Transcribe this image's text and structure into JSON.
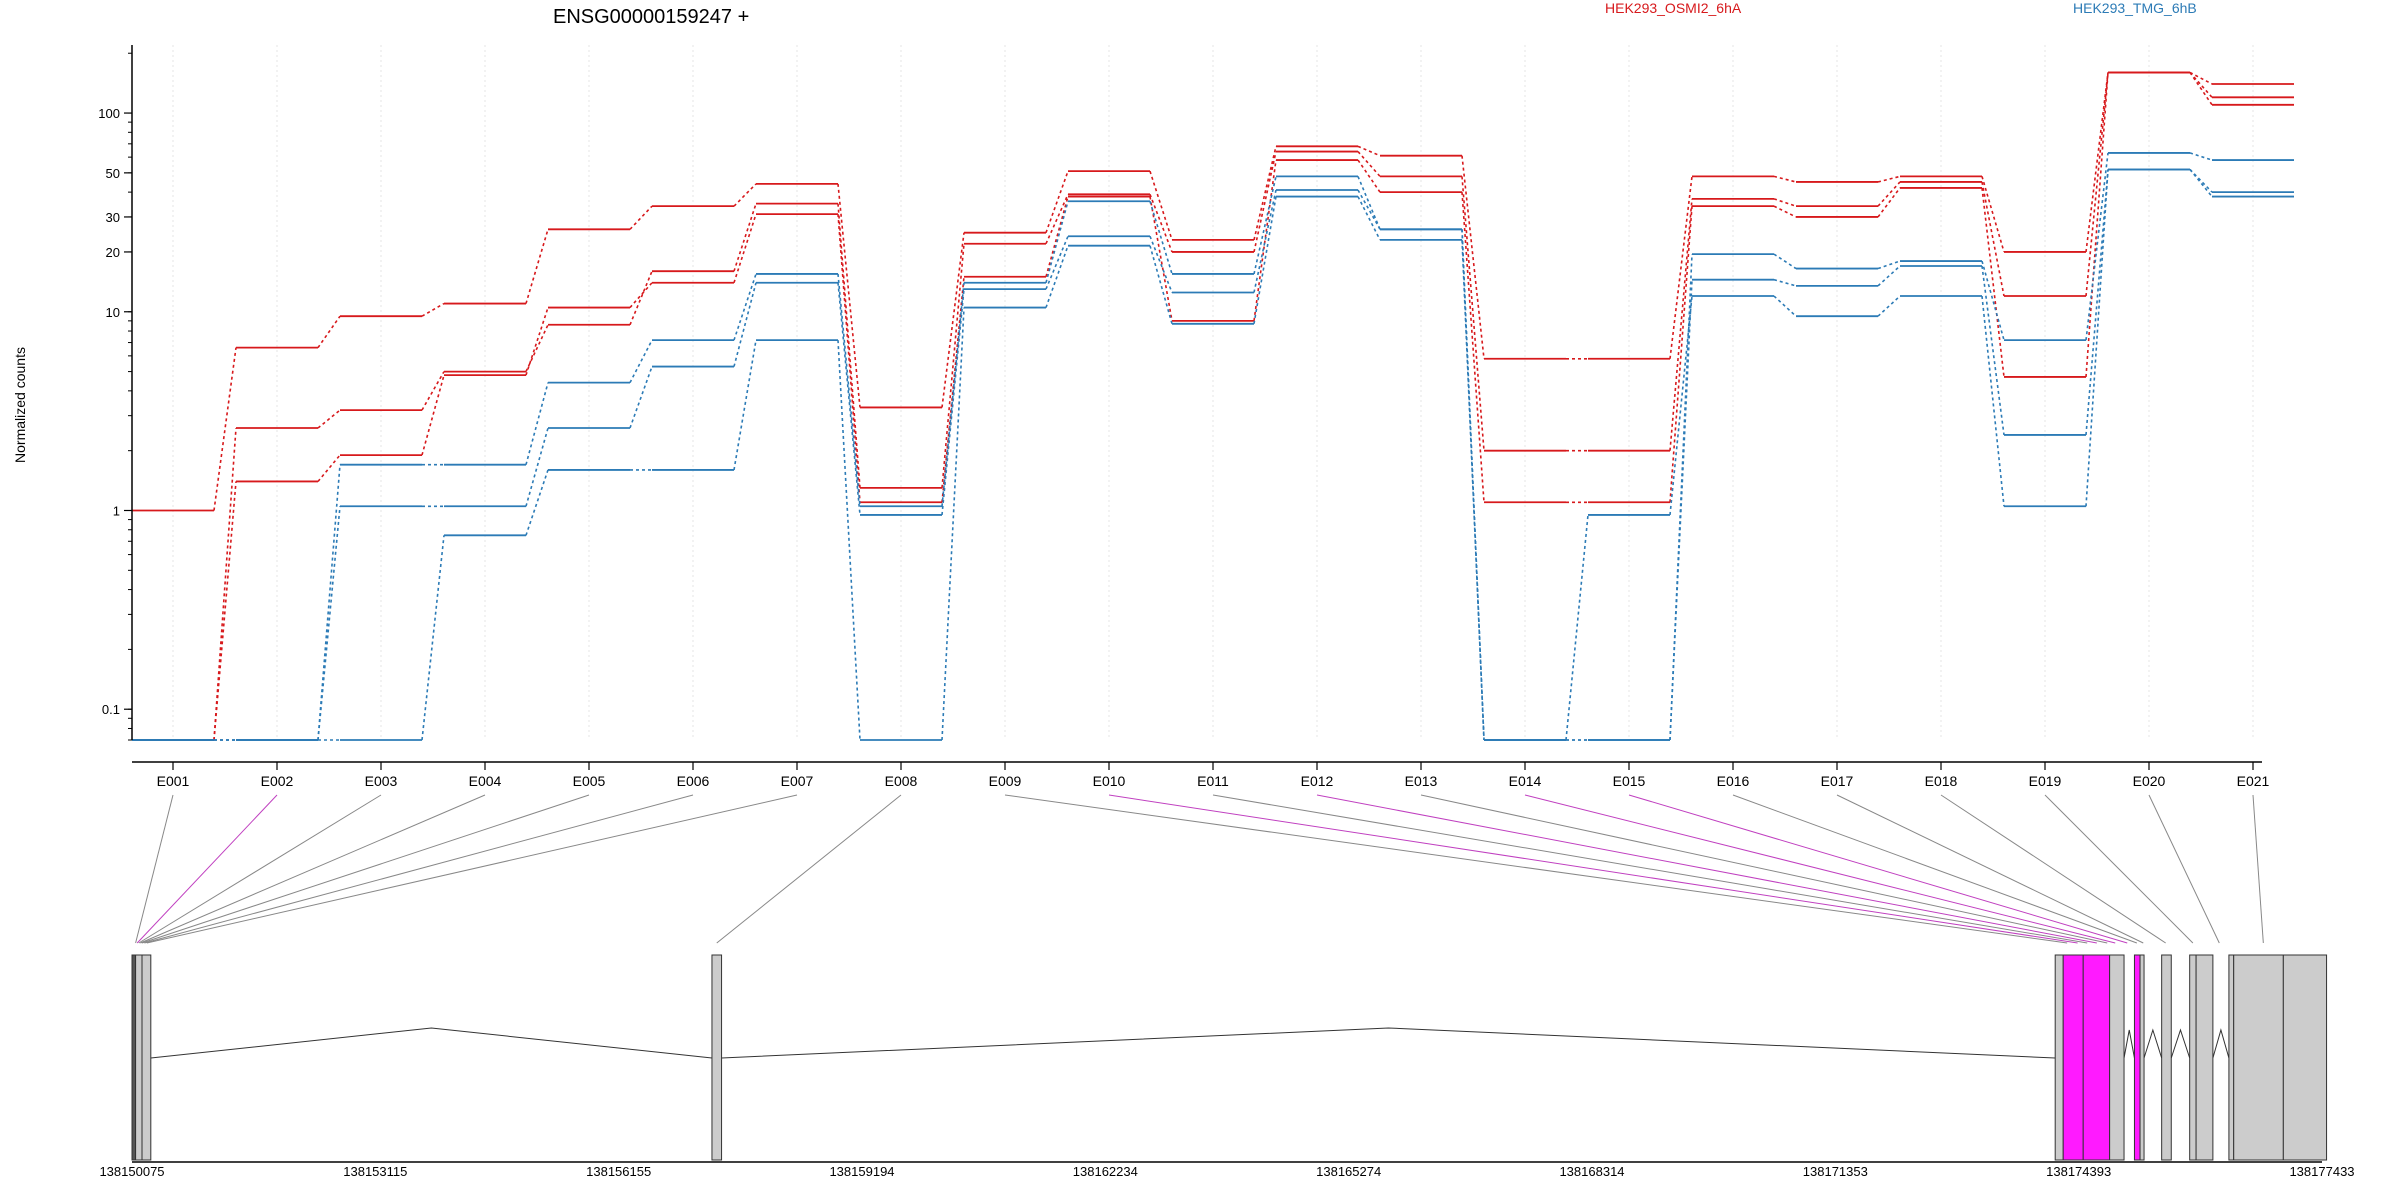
{
  "chart_data": {
    "type": "line",
    "title": "ENSG00000159247 +",
    "ylabel": "Normalized counts",
    "xlabel": "",
    "yscale": "log",
    "ylim": [
      0.07,
      220
    ],
    "yticks": [
      0.1,
      1,
      10,
      20,
      30,
      50,
      100
    ],
    "grid": "vertical",
    "legend_placement": "top",
    "categories": [
      "E001",
      "E002",
      "E003",
      "E004",
      "E005",
      "E006",
      "E007",
      "E008",
      "E009",
      "E010",
      "E011",
      "E012",
      "E013",
      "E014",
      "E015",
      "E016",
      "E017",
      "E018",
      "E019",
      "E020",
      "E021"
    ],
    "series": [
      {
        "name": "HEK293_OSMI2_6hA",
        "color": "#d7191c",
        "values": [
          1.0,
          6.6,
          9.5,
          11,
          26,
          34,
          44,
          3.3,
          25,
          51,
          23,
          68,
          61,
          5.8,
          5.8,
          48,
          45,
          48,
          20,
          160,
          140
        ]
      },
      {
        "name": "HEK293_OSMI2_6hA",
        "color": "#d7191c",
        "values": [
          0.07,
          2.6,
          3.2,
          5.0,
          8.6,
          16,
          35,
          1.3,
          22,
          39,
          20,
          64,
          48,
          2.0,
          2.0,
          37,
          34,
          45,
          12,
          160,
          120
        ]
      },
      {
        "name": "HEK293_OSMI2_6hA",
        "color": "#d7191c",
        "values": [
          0.07,
          1.4,
          1.9,
          4.8,
          10.5,
          14,
          31,
          1.1,
          15,
          38,
          9,
          58,
          40,
          1.1,
          1.1,
          34,
          30,
          42,
          4.7,
          160,
          110
        ]
      },
      {
        "name": "HEK293_TMG_6hB",
        "color": "#2c7bb6",
        "values": [
          0.07,
          0.07,
          1.7,
          1.7,
          4.4,
          7.2,
          15.5,
          1.05,
          14,
          36,
          15.5,
          48,
          26,
          0.07,
          0.07,
          19.5,
          16.5,
          18,
          7.2,
          63,
          58
        ]
      },
      {
        "name": "HEK293_TMG_6hB",
        "color": "#2c7bb6",
        "values": [
          0.07,
          0.07,
          1.05,
          1.05,
          2.6,
          5.3,
          14,
          0.95,
          13,
          24,
          12.5,
          41,
          26,
          0.07,
          0.07,
          14.5,
          13.5,
          17,
          2.4,
          52,
          40
        ]
      },
      {
        "name": "HEK293_TMG_6hB",
        "color": "#2c7bb6",
        "values": [
          0.07,
          0.07,
          0.07,
          0.75,
          1.6,
          1.6,
          7.2,
          0.07,
          10.5,
          21.5,
          8.7,
          38,
          23,
          0.07,
          0.95,
          12,
          9.5,
          12,
          1.05,
          52,
          38
        ]
      }
    ],
    "legend_labels": [
      "HEK293_OSMI2_6hA",
      "HEK293_TMG_6hB"
    ],
    "genome_axis": {
      "range": [
        138150075,
        138177433
      ],
      "tick_labels": [
        "138150075",
        "138153115",
        "138156155",
        "138159194",
        "138162234",
        "138165274",
        "138168314",
        "138171353",
        "138174393",
        "138177433"
      ]
    },
    "gene_model": {
      "exons": [
        {
          "start": 138150075,
          "end": 138150120,
          "color": "#555555"
        },
        {
          "start": 138150120,
          "end": 138150200,
          "color": "#cccccc"
        },
        {
          "start": 138150200,
          "end": 138150310,
          "color": "#cccccc"
        },
        {
          "start": 138157320,
          "end": 138157440,
          "color": "#cccccc"
        },
        {
          "start": 138174100,
          "end": 138174200,
          "color": "#cccccc"
        },
        {
          "start": 138174200,
          "end": 138174450,
          "color": "#ff1aff"
        },
        {
          "start": 138174450,
          "end": 138174780,
          "color": "#ff1aff"
        },
        {
          "start": 138174780,
          "end": 138174960,
          "color": "#cccccc"
        },
        {
          "start": 138175090,
          "end": 138175160,
          "color": "#ff1aff"
        },
        {
          "start": 138175160,
          "end": 138175210,
          "color": "#cccccc"
        },
        {
          "start": 138175430,
          "end": 138175550,
          "color": "#cccccc"
        },
        {
          "start": 138175780,
          "end": 138175860,
          "color": "#cccccc"
        },
        {
          "start": 138175860,
          "end": 138176070,
          "color": "#cccccc"
        },
        {
          "start": 138176270,
          "end": 138176330,
          "color": "#cccccc"
        },
        {
          "start": 138176330,
          "end": 138176950,
          "color": "#cccccc"
        },
        {
          "start": 138176950,
          "end": 138177490,
          "color": "#cccccc"
        }
      ],
      "exon_bin_anchors": [
        138150120,
        138150140,
        138150160,
        138150180,
        138150200,
        138150230,
        138150260,
        138157380,
        138174250,
        138174380,
        138174500,
        138174620,
        138174750,
        138174850,
        138175000,
        138175120,
        138175200,
        138175480,
        138175820,
        138176150,
        138176700
      ],
      "highlighted_bins": [
        "E002",
        "E010",
        "E012",
        "E014",
        "E015"
      ]
    }
  }
}
